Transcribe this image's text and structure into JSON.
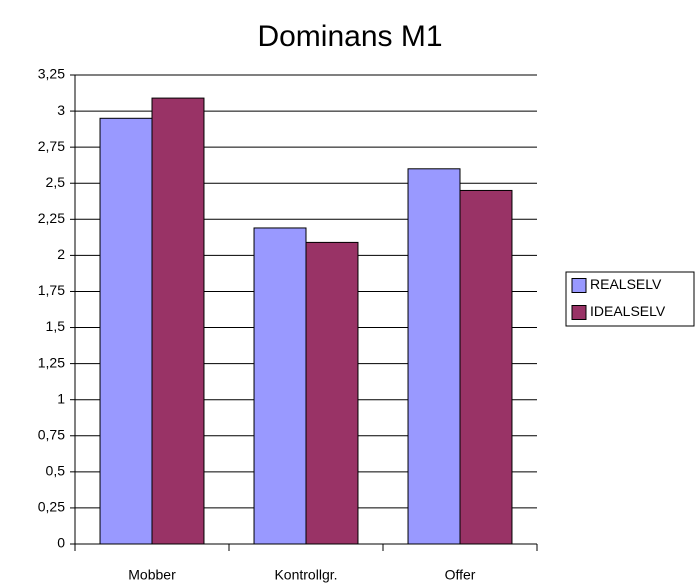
{
  "chart_data": {
    "type": "bar",
    "title": "Dominans M1",
    "categories": [
      "Mobber",
      "Kontrollgr.",
      "Offer"
    ],
    "series": [
      {
        "name": "REALSELV",
        "color": "#9999ff",
        "values": [
          2.95,
          2.19,
          2.6
        ]
      },
      {
        "name": "IDEALSELV",
        "color": "#993366",
        "values": [
          3.09,
          2.09,
          2.45
        ]
      }
    ],
    "ylim": [
      0,
      3.25
    ],
    "yticks": [
      0,
      {
        "value": 0.25,
        "label": "0,25"
      },
      {
        "value": 0.5,
        "label": "0,5"
      },
      {
        "value": 0.75,
        "label": "0,75"
      },
      1,
      {
        "value": 1.25,
        "label": "1,25"
      },
      {
        "value": 1.5,
        "label": "1,5"
      },
      {
        "value": 1.75,
        "label": "1,75"
      },
      2,
      {
        "value": 2.25,
        "label": "2,25"
      },
      {
        "value": 2.5,
        "label": "2,5"
      },
      {
        "value": 2.75,
        "label": "2,75"
      },
      3,
      {
        "value": 3.25,
        "label": "3,25"
      }
    ],
    "grid": true,
    "legend": "right"
  }
}
